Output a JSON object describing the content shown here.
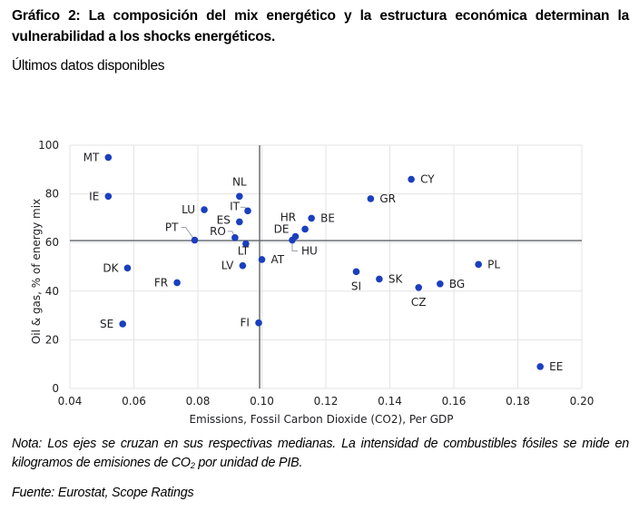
{
  "header": {
    "title_line1": "Gráfico 2: La composición del mix energético y la estructura económica determinan la",
    "title_line2": "vulnerabilidad a los shocks energéticos.",
    "subtitle": "Últimos datos disponibles"
  },
  "footer": {
    "note_line1": "Nota: Los ejes se cruzan en sus respectivas medianas. La intensidad de combustibles fósiles se mide en",
    "note_line2_pre": "kilogramos de emisiones de CO",
    "note_line2_sub": "2",
    "note_line2_post": " por unidad de PIB.",
    "source": "Fuente: Eurostat, Scope Ratings"
  },
  "chart_data": {
    "type": "scatter",
    "title": "",
    "xlabel": "Emissions, Fossil Carbon Dioxide (CO2), Per GDP",
    "ylabel": "Oil & gas, % of energy mix",
    "xlim": [
      0.04,
      0.2
    ],
    "ylim": [
      0,
      100
    ],
    "xticks": [
      "0.04",
      "0.06",
      "0.08",
      "0.10",
      "0.12",
      "0.14",
      "0.16",
      "0.18",
      "0.20"
    ],
    "yticks": [
      "0",
      "20",
      "40",
      "60",
      "80",
      "100"
    ],
    "grid": true,
    "median_lines": {
      "x": 0.0993,
      "y": 60.8
    },
    "point_color": "#1a3fbf",
    "points": [
      {
        "label": "MT",
        "x": 0.052,
        "y": 95
      },
      {
        "label": "IE",
        "x": 0.052,
        "y": 79
      },
      {
        "label": "NL",
        "x": 0.093,
        "y": 79
      },
      {
        "label": "LU",
        "x": 0.082,
        "y": 73.5
      },
      {
        "label": "IT",
        "x": 0.0956,
        "y": 73
      },
      {
        "label": "ES",
        "x": 0.093,
        "y": 68.5
      },
      {
        "label": "RO",
        "x": 0.0916,
        "y": 62
      },
      {
        "label": "PT",
        "x": 0.079,
        "y": 61
      },
      {
        "label": "LT",
        "x": 0.095,
        "y": 59.5
      },
      {
        "label": "LV",
        "x": 0.094,
        "y": 50.5
      },
      {
        "label": "AT",
        "x": 0.1,
        "y": 53
      },
      {
        "label": "FI",
        "x": 0.099,
        "y": 27
      },
      {
        "label": "DK",
        "x": 0.058,
        "y": 49.5
      },
      {
        "label": "FR",
        "x": 0.0735,
        "y": 43.5
      },
      {
        "label": "SE",
        "x": 0.0565,
        "y": 26.5
      },
      {
        "label": "BE",
        "x": 0.1155,
        "y": 70
      },
      {
        "label": "HR",
        "x": 0.1135,
        "y": 65.5
      },
      {
        "label": "DE",
        "x": 0.1105,
        "y": 62.5
      },
      {
        "label": "HU",
        "x": 0.1095,
        "y": 61
      },
      {
        "label": "CY",
        "x": 0.1467,
        "y": 86
      },
      {
        "label": "GR",
        "x": 0.134,
        "y": 78
      },
      {
        "label": "SI",
        "x": 0.1295,
        "y": 48
      },
      {
        "label": "SK",
        "x": 0.1367,
        "y": 45
      },
      {
        "label": "CZ",
        "x": 0.149,
        "y": 41.5
      },
      {
        "label": "BG",
        "x": 0.1557,
        "y": 43
      },
      {
        "label": "PL",
        "x": 0.1677,
        "y": 51
      },
      {
        "label": "EE",
        "x": 0.187,
        "y": 9
      }
    ]
  }
}
